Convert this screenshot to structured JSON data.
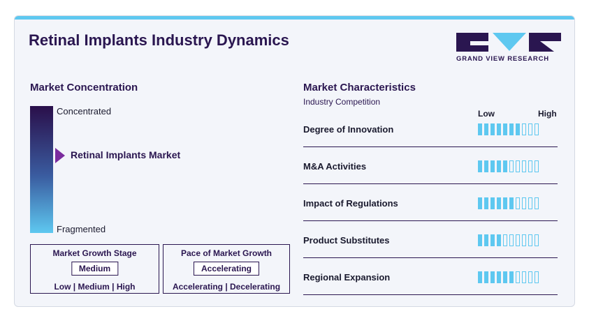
{
  "title": "Retinal Implants Industry Dynamics",
  "logo": {
    "text": "GRAND VIEW RESEARCH",
    "colors": {
      "dark": "#2a1650",
      "accent": "#5ec8f0"
    }
  },
  "market_concentration": {
    "heading": "Market Concentration",
    "top_label": "Concentrated",
    "bottom_label": "Fragmented",
    "marker_label": "Retinal Implants Market",
    "marker_level": 0.38
  },
  "growth_stage": {
    "title": "Market Growth Stage",
    "value": "Medium",
    "scale": "Low | Medium | High"
  },
  "growth_pace": {
    "title": "Pace of Market Growth",
    "value": "Accelerating",
    "scale": "Accelerating | Decelerating"
  },
  "market_characteristics": {
    "heading": "Market Characteristics",
    "subheading": "Industry Competition",
    "low_label": "Low",
    "high_label": "High",
    "total_segments": 10,
    "items": [
      {
        "label": "Degree of Innovation",
        "level": 7
      },
      {
        "label": "M&A Activities",
        "level": 5
      },
      {
        "label": "Impact of Regulations",
        "level": 6
      },
      {
        "label": "Product Substitutes",
        "level": 4
      },
      {
        "label": "Regional Expansion",
        "level": 6
      }
    ]
  },
  "colors": {
    "primary": "#2a1650",
    "accent": "#5ec8f0",
    "marker": "#7b2c9e"
  }
}
